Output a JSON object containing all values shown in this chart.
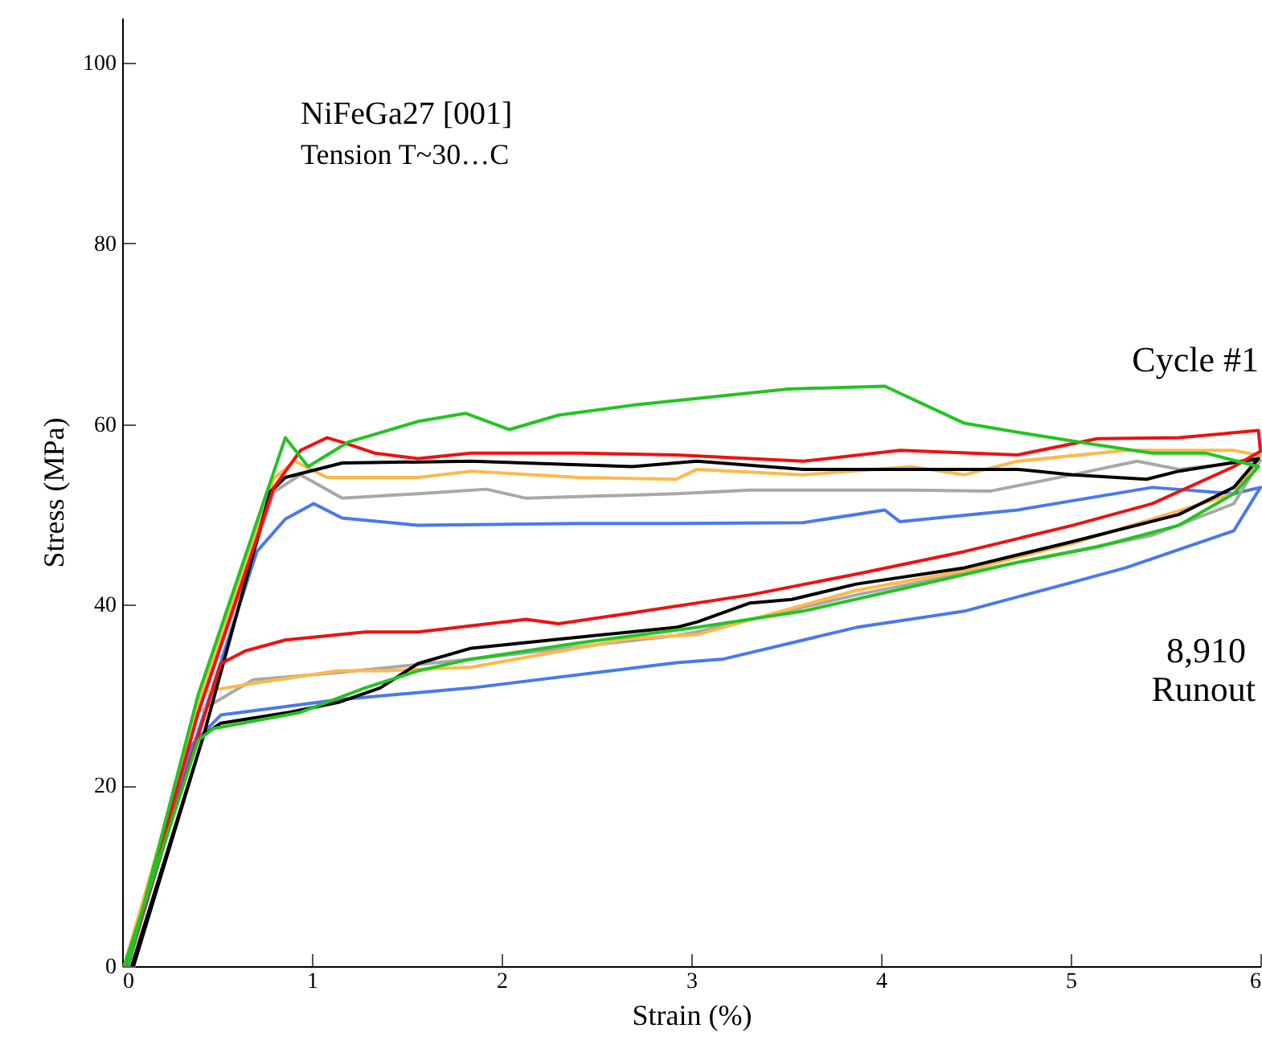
{
  "chart_data": {
    "type": "line",
    "xlabel": "Strain (%)",
    "ylabel": "Stress (MPa)",
    "annotations": [
      "NiFeGa27 [001]",
      "Tension T~30…C",
      "Cycle  #1",
      "8,910",
      "Runout"
    ],
    "xlim": [
      0,
      6
    ],
    "ylim": [
      0,
      105
    ],
    "xticks": [
      0,
      1,
      2,
      3,
      4,
      5,
      6
    ],
    "yticks": [
      0,
      20,
      40,
      60,
      80,
      100
    ],
    "grid": false,
    "line_style": "solid",
    "marker": "none",
    "series": [
      {
        "color": "#4a78f0",
        "x": [
          0.03,
          0.37,
          0.71,
          0.86,
          1.01,
          1.16,
          1.56,
          2.41,
          2.92,
          3.59,
          4.02,
          4.1,
          4.72,
          5.43,
          5.86,
          6,
          5.86,
          5.29,
          5.01,
          4.44,
          3.87,
          3.17,
          2.92,
          1.84,
          1.14,
          0.52,
          0.37,
          0.01
        ],
        "values": [
          0,
          24,
          45.9,
          49.5,
          51.2,
          49.6,
          48.8,
          49,
          49,
          49.1,
          50.5,
          49.2,
          50.5,
          53,
          52.3,
          53,
          48.2,
          44.1,
          42.5,
          39.3,
          37.5,
          34,
          33.6,
          30.8,
          29.5,
          27.8,
          24.6,
          0
        ]
      },
      {
        "color": "#a8a8a8",
        "x": [
          0.03,
          0.4,
          0.8,
          0.94,
          1.16,
          1.56,
          1.92,
          2.13,
          2.92,
          3.31,
          4.16,
          4.58,
          5.01,
          5.35,
          5.57,
          6,
          5.86,
          5.43,
          4.72,
          3.87,
          3.03,
          2.92,
          1.84,
          1.14,
          0.69,
          0.4,
          0.02
        ],
        "values": [
          0,
          28,
          52.5,
          54.4,
          51.8,
          52.3,
          52.8,
          51.8,
          52.3,
          52.7,
          52.7,
          52.6,
          54.4,
          55.9,
          55,
          56,
          51.2,
          47.7,
          44.7,
          41.1,
          37,
          36.6,
          34,
          32.5,
          31.7,
          28.1,
          0
        ]
      },
      {
        "color": "#ffb84a",
        "x": [
          0.02,
          0.4,
          0.8,
          0.91,
          1.08,
          1.56,
          1.84,
          2.41,
          2.92,
          3.03,
          3.59,
          4.16,
          4.44,
          4.72,
          5.29,
          5.86,
          6,
          5.86,
          5.43,
          5.01,
          4.44,
          3.87,
          3.03,
          2.69,
          1.84,
          1.39,
          1.14,
          0.69,
          0.43,
          0.01
        ],
        "values": [
          0,
          29,
          54,
          55.9,
          54.1,
          54.1,
          54.8,
          54.1,
          53.9,
          55,
          54.4,
          55.3,
          54.4,
          55.9,
          57.1,
          57.1,
          56.5,
          52.3,
          49.5,
          46.8,
          43.8,
          41.6,
          36.7,
          36.3,
          33.1,
          32.7,
          32.7,
          31.3,
          30.4,
          0
        ]
      },
      {
        "color": "#000000",
        "x": [
          0.06,
          0.43,
          0.78,
          0.86,
          1.16,
          1.84,
          2.69,
          3.03,
          3.59,
          4.72,
          5.01,
          5.4,
          5.57,
          5.99,
          5.86,
          5.57,
          5.01,
          4.44,
          3.87,
          3.53,
          3.31,
          3.03,
          2.92,
          2.26,
          1.84,
          1.56,
          1.36,
          1.14,
          0.88,
          0.52,
          0.43,
          0.05
        ],
        "values": [
          0,
          25.6,
          52.5,
          54.1,
          55.7,
          55.9,
          55.3,
          55.9,
          55,
          55,
          54.4,
          53.9,
          54.8,
          56.2,
          53,
          50,
          47,
          44.1,
          42.3,
          40.6,
          40.2,
          38.1,
          37.5,
          36.1,
          35.2,
          33.5,
          30.8,
          29.2,
          28.1,
          26.9,
          25.6,
          0
        ]
      },
      {
        "color": "#f01010",
        "x": [
          0.03,
          0.4,
          0.8,
          0.94,
          1.08,
          1.16,
          1.33,
          1.56,
          1.84,
          2.41,
          2.92,
          3.59,
          4.1,
          4.72,
          5.14,
          5.57,
          5.99,
          6,
          5.86,
          5.43,
          5.01,
          4.44,
          3.87,
          3.31,
          2.75,
          2.3,
          2.13,
          1.56,
          1.28,
          0.86,
          0.65,
          0.52,
          0.02
        ],
        "values": [
          0,
          28,
          53,
          57.1,
          58.5,
          58,
          56.8,
          56.2,
          56.8,
          56.8,
          56.6,
          55.9,
          57.1,
          56.6,
          58.4,
          58.5,
          59.3,
          57,
          55.3,
          51.2,
          48.8,
          45.9,
          43.4,
          41.1,
          39.3,
          37.9,
          38.4,
          37,
          37,
          36.1,
          34.9,
          33.5,
          0
        ]
      },
      {
        "color": "#22c422",
        "x": [
          0.03,
          0.4,
          0.86,
          0.98,
          1.19,
          1.56,
          1.81,
          2.04,
          2.3,
          2.69,
          3.51,
          4.02,
          4.44,
          4.78,
          5.14,
          5.43,
          5.71,
          5.99,
          5.86,
          5.57,
          5.14,
          4.72,
          4.16,
          3.59,
          3.03,
          2.41,
          1.84,
          1.56,
          1.28,
          0.94,
          0.48,
          0.4,
          0.01
        ],
        "values": [
          0,
          30,
          58.5,
          55.3,
          58,
          60.3,
          61.2,
          59.4,
          61,
          62.1,
          63.9,
          64.2,
          60.1,
          58.9,
          57.7,
          56.8,
          56.8,
          55.3,
          52.3,
          48.8,
          46.4,
          44.7,
          42,
          39.3,
          37.5,
          35.8,
          34,
          32.7,
          30.8,
          28.1,
          26.3,
          25,
          0
        ]
      }
    ]
  }
}
